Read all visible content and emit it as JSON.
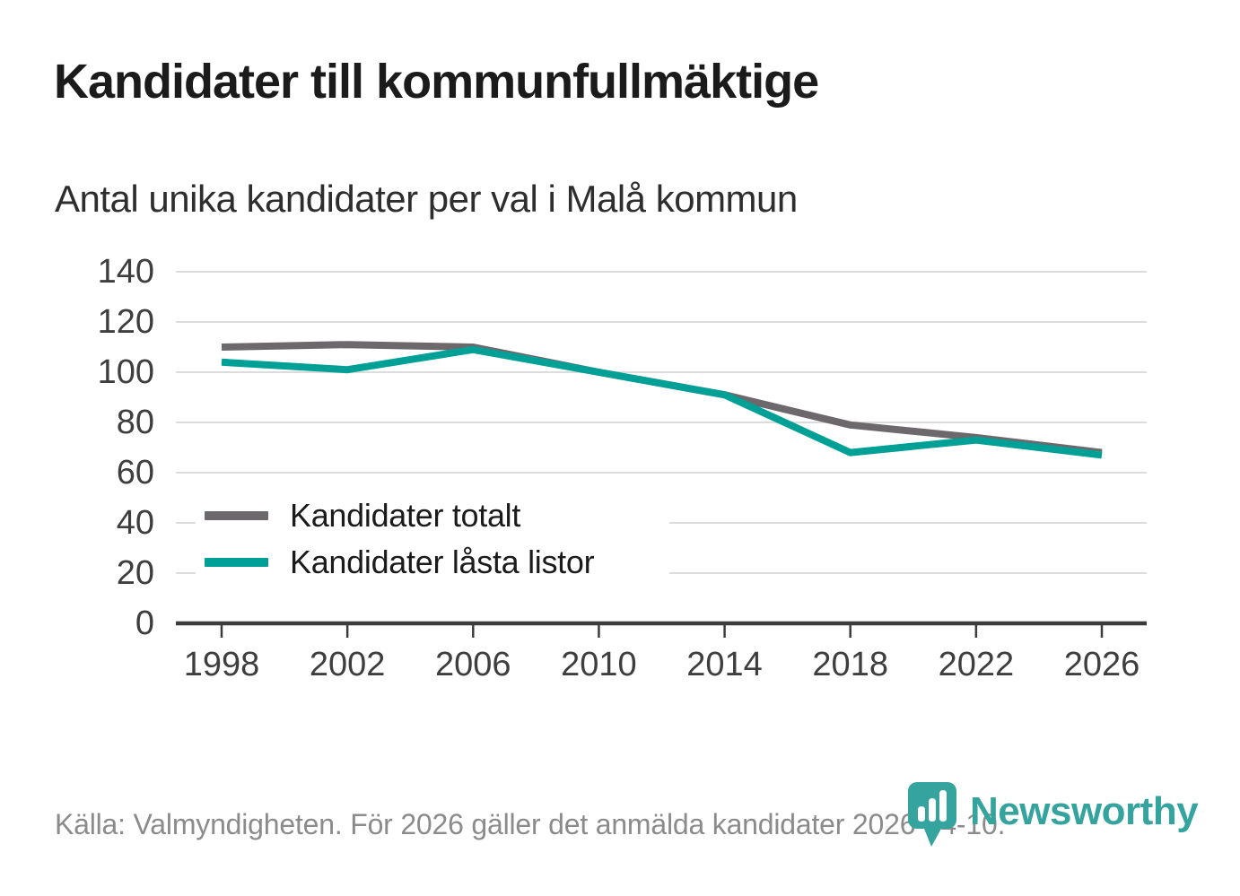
{
  "title": "Kandidater till kommunfullmäktige",
  "subtitle": "Antal unika kandidater per val i Malå kommun",
  "footer": {
    "source_text": "Källa: Valmyndigheten. För 2026 gäller det anmälda kandidater 2026-04-10.",
    "brand": "Newsworthy"
  },
  "colors": {
    "series_total": "#6c686c",
    "series_locked": "#00a096",
    "brand_teal": "#35a49e",
    "gridline": "#dcdcdc",
    "axis": "#3c3c3c",
    "tick_text": "#3e3e3e",
    "title_text": "#1b1b1b",
    "muted_text": "#8b8b8b"
  },
  "chart_data": {
    "type": "line",
    "title": "Kandidater till kommunfullmäktige",
    "subtitle": "Antal unika kandidater per val i Malå kommun",
    "x": [
      1998,
      2002,
      2006,
      2010,
      2014,
      2018,
      2022,
      2026
    ],
    "series": [
      {
        "name": "Kandidater totalt",
        "color": "#6c686c",
        "values": [
          110,
          111,
          110,
          100,
          91,
          79,
          74,
          68
        ]
      },
      {
        "name": "Kandidater låsta listor",
        "color": "#00a096",
        "values": [
          104,
          101,
          109,
          100,
          91,
          68,
          73,
          67
        ]
      }
    ],
    "xlabel": "",
    "ylabel": "",
    "ylim": [
      0,
      140
    ],
    "ytick_step": 20,
    "grid": "horizontal",
    "legend_position": "inside-left-bottom"
  }
}
